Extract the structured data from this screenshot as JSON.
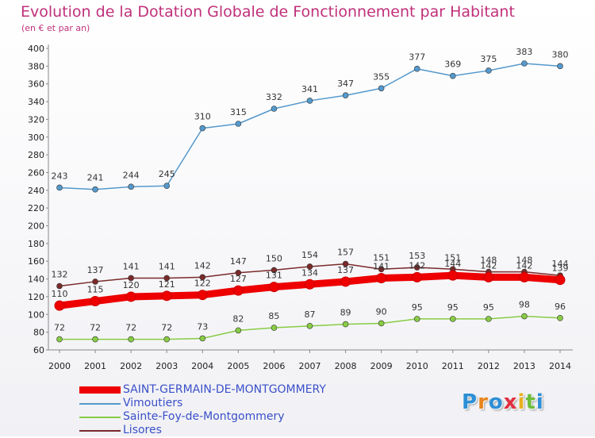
{
  "chart_data": {
    "type": "line",
    "title": "Evolution de la Dotation Globale de Fonctionnement par Habitant",
    "subtitle": "(en € et par an)",
    "x": [
      "2000",
      "2001",
      "2002",
      "2003",
      "2004",
      "2005",
      "2006",
      "2007",
      "2008",
      "2009",
      "2010",
      "2011",
      "2012",
      "2013",
      "2014"
    ],
    "ylim": [
      60,
      400
    ],
    "yticks": [
      60,
      80,
      100,
      120,
      140,
      160,
      180,
      200,
      220,
      240,
      260,
      280,
      300,
      320,
      340,
      360,
      380,
      400
    ],
    "grid": false,
    "legend_position": "bottom-left",
    "series": [
      {
        "name": "SAINT-GERMAIN-DE-MONTGOMMERY",
        "color": "#ee0000",
        "values": [
          110,
          115,
          120,
          121,
          122,
          127,
          131,
          134,
          137,
          141,
          142,
          144,
          142,
          142,
          139
        ]
      },
      {
        "name": "Vimoutiers",
        "color": "#5599cc",
        "values": [
          243,
          241,
          244,
          245,
          310,
          315,
          332,
          341,
          347,
          355,
          377,
          369,
          375,
          383,
          380
        ]
      },
      {
        "name": "Sainte-Foy-de-Montgommery",
        "color": "#88cc44",
        "values": [
          72,
          72,
          72,
          72,
          73,
          82,
          85,
          87,
          89,
          90,
          95,
          95,
          95,
          98,
          96
        ]
      },
      {
        "name": "Lisores",
        "color": "#7a2a2a",
        "values": [
          132,
          137,
          141,
          141,
          142,
          147,
          150,
          154,
          157,
          151,
          153,
          151,
          148,
          148,
          144
        ]
      }
    ]
  },
  "logo": {
    "letters": [
      "P",
      "r",
      "o",
      "x",
      "i",
      "t",
      "i"
    ],
    "colors": [
      "#2d8fd6",
      "#e8841a",
      "#2d8fd6",
      "#e03040",
      "#e8b020",
      "#6dbd3a",
      "#2d8fd6"
    ]
  }
}
